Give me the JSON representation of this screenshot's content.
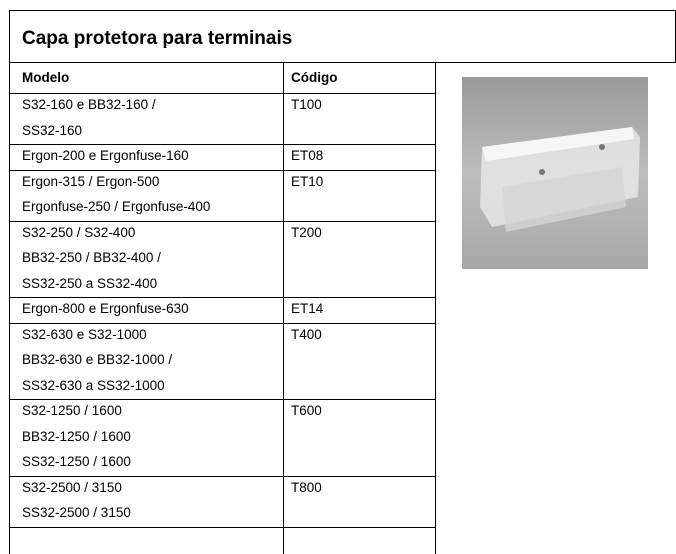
{
  "header": {
    "title": "Capa protetora para terminais"
  },
  "table": {
    "columns": [
      "Modelo",
      "Código"
    ],
    "rows": [
      {
        "model": [
          "S32-160 e BB32-160 /",
          "SS32-160"
        ],
        "code": "T100"
      },
      {
        "model": [
          "Ergon-200 e Ergonfuse-160"
        ],
        "code": "ET08"
      },
      {
        "model": [
          "Ergon-315 / Ergon-500",
          "Ergonfuse-250 / Ergonfuse-400"
        ],
        "code": "ET10"
      },
      {
        "model": [
          "S32-250 / S32-400",
          "BB32-250 / BB32-400 /",
          "SS32-250 a SS32-400"
        ],
        "code": "T200"
      },
      {
        "model": [
          "Ergon-800 e Ergonfuse-630"
        ],
        "code": "ET14"
      },
      {
        "model": [
          "S32-630 e S32-1000",
          "BB32-630 e BB32-1000 /",
          "SS32-630 a SS32-1000"
        ],
        "code": "T400"
      },
      {
        "model": [
          "S32-1250 / 1600",
          "BB32-1250 / 1600",
          "SS32-1250 / 1600"
        ],
        "code": "T600"
      },
      {
        "model": [
          "S32-2500 / 3150",
          "SS32-2500 / 3150"
        ],
        "code": "T800"
      }
    ]
  }
}
